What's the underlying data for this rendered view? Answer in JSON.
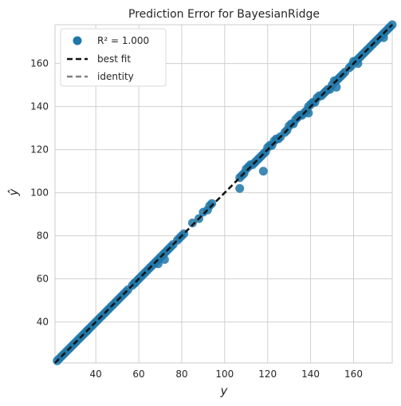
{
  "chart_data": {
    "type": "scatter",
    "title": "Prediction Error for BayesianRidge",
    "xlabel": "y",
    "ylabel": "ŷ",
    "xlim": [
      21,
      178
    ],
    "ylim": [
      21,
      178
    ],
    "xticks": [
      40,
      60,
      80,
      100,
      120,
      140,
      160
    ],
    "yticks": [
      40,
      60,
      80,
      100,
      120,
      140,
      160
    ],
    "grid": true,
    "legend_position": "top-left",
    "legend": {
      "r2_label": "R² = 1.000",
      "best_fit_label": "best fit",
      "identity_label": "identity"
    },
    "colors": {
      "points": "#1f77a8",
      "best_fit": "#111111",
      "identity": "#808080",
      "grid": "#d0d0d0"
    },
    "best_fit_line": {
      "x": [
        21,
        178
      ],
      "y": [
        21,
        178
      ]
    },
    "identity_line": {
      "x": [
        21,
        178
      ],
      "y": [
        21,
        178
      ]
    },
    "series": [
      {
        "x": [
          22,
          23,
          24,
          25,
          26,
          27,
          28,
          29,
          30,
          31,
          32,
          33,
          34,
          35,
          36,
          37,
          38,
          39,
          40,
          41,
          42,
          43,
          44,
          45,
          46,
          47,
          48,
          49,
          50,
          51,
          52,
          53,
          54,
          55,
          57,
          58,
          59,
          60,
          61,
          62,
          63,
          64,
          65,
          66,
          67,
          68,
          69,
          70,
          71,
          72,
          73,
          74,
          75,
          76,
          78,
          79,
          80,
          81,
          85,
          88,
          90,
          92,
          93,
          94,
          107,
          108,
          109,
          110,
          111,
          112,
          113,
          114,
          115,
          116,
          117,
          118,
          119,
          120,
          121,
          122,
          123,
          124,
          125,
          126,
          128,
          129,
          130,
          131,
          132,
          133,
          134,
          135,
          136,
          137,
          138,
          139,
          140,
          141,
          142,
          143,
          144,
          145,
          146,
          147,
          148,
          149,
          150,
          151,
          152,
          153,
          154,
          155,
          156,
          158,
          159,
          160,
          161,
          162,
          163,
          164,
          165,
          166,
          167,
          168,
          169,
          170,
          171,
          172,
          173,
          174,
          175,
          176,
          177,
          178,
          36,
          58,
          69,
          72,
          107,
          118,
          139,
          152,
          162,
          174
        ],
        "y": [
          22,
          23,
          24,
          25,
          26,
          27,
          28,
          29,
          30,
          31,
          32,
          33,
          34,
          35,
          36,
          37,
          38,
          39,
          40,
          41,
          42,
          43,
          44,
          45,
          46,
          47,
          48,
          49,
          50,
          51,
          52,
          53,
          54,
          55,
          57,
          58,
          59,
          60,
          61,
          62,
          63,
          64,
          65,
          66,
          67,
          68,
          69,
          70,
          71,
          72,
          73,
          74,
          75,
          76,
          78,
          79,
          80,
          81,
          86,
          88,
          91,
          92,
          94,
          95,
          107,
          108,
          109,
          111,
          112,
          113,
          113,
          114,
          115,
          116,
          117,
          118,
          119,
          121,
          122,
          122,
          124,
          125,
          125,
          126,
          128,
          129,
          131,
          132,
          132,
          134,
          135,
          136,
          136,
          137,
          138,
          140,
          141,
          142,
          142,
          144,
          145,
          145,
          146,
          147,
          148,
          148,
          150,
          152,
          152,
          153,
          154,
          155,
          156,
          158,
          159,
          161,
          161,
          162,
          163,
          164,
          165,
          166,
          167,
          168,
          169,
          170,
          171,
          172,
          173,
          174,
          175,
          176,
          177,
          178,
          36,
          58,
          67,
          69,
          102,
          110,
          137,
          149,
          160,
          172
        ]
      }
    ]
  }
}
